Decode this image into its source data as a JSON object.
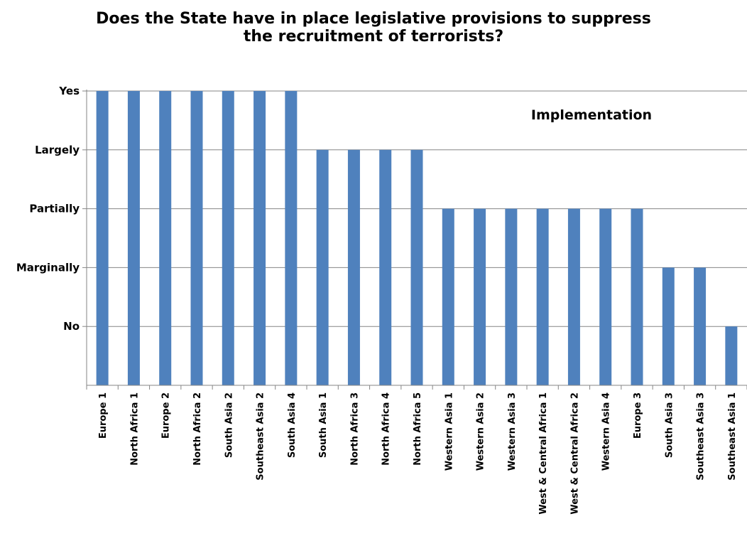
{
  "chart_data": {
    "type": "bar",
    "title_lines": [
      "Does the State have in place legislative provisions to suppress",
      "the recruitment of terrorists?"
    ],
    "annotation": "Implementation",
    "y_levels": [
      "No",
      "Marginally",
      "Partially",
      "Largely",
      "Yes"
    ],
    "ylim": [
      0,
      5
    ],
    "grid": true,
    "categories": [
      "Europe 1",
      "North Africa 1",
      "Europe 2",
      "North Africa 2",
      "South Asia 2",
      "Southeast Asia 2",
      "South Asia 4",
      "South Asia 1",
      "North Africa 3",
      "North Africa 4",
      "North Africa 5",
      "Western Asia 1",
      "Western Asia 2",
      "Western Asia 3",
      "West & Central Africa 1",
      "West & Central Africa 2",
      "Western Asia 4",
      "Europe 3",
      "South Asia 3",
      "Southeast Asia 3",
      "Southeast Asia 1"
    ],
    "values": [
      5,
      5,
      5,
      5,
      5,
      5,
      5,
      4,
      4,
      4,
      4,
      3,
      3,
      3,
      3,
      3,
      3,
      3,
      2,
      2,
      1
    ],
    "value_labels": [
      "Yes",
      "Yes",
      "Yes",
      "Yes",
      "Yes",
      "Yes",
      "Yes",
      "Largely",
      "Largely",
      "Largely",
      "Largely",
      "Partially",
      "Partially",
      "Partially",
      "Partially",
      "Partially",
      "Partially",
      "Partially",
      "Marginally",
      "Marginally",
      "No"
    ],
    "bar_color": "#4F81BD",
    "grid_color": "#868686",
    "axis_color": "#868686"
  }
}
